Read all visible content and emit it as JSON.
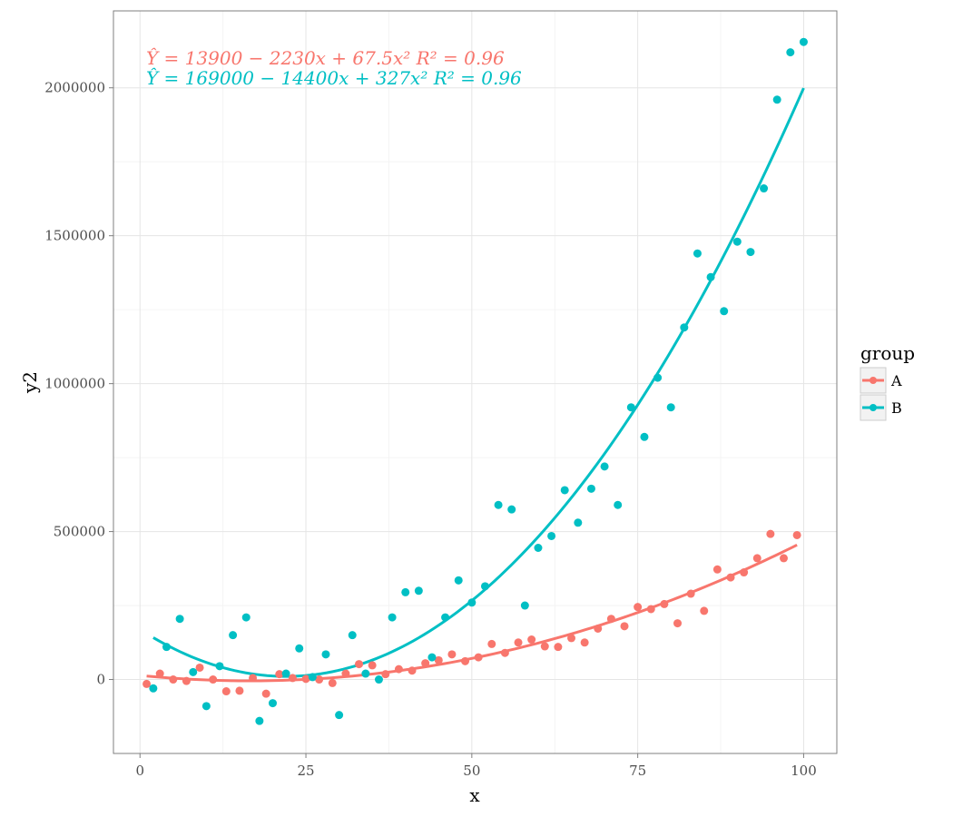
{
  "chart_data": {
    "type": "scatter",
    "title": "",
    "xlabel": "x",
    "ylabel": "y2",
    "xlim": [
      -4,
      105
    ],
    "ylim": [
      -250000,
      2260000
    ],
    "x_ticks": [
      0,
      25,
      50,
      75,
      100
    ],
    "x_tick_labels": [
      "0",
      "25",
      "50",
      "75",
      "100"
    ],
    "y_ticks": [
      0,
      500000,
      1000000,
      1500000,
      2000000
    ],
    "y_tick_labels": [
      "0",
      "500000",
      "1000000",
      "1500000",
      "2000000"
    ],
    "grid": true,
    "legend": {
      "title": "group",
      "position": "right",
      "entries": [
        "A",
        "B"
      ]
    },
    "annotations": [
      {
        "group": "A",
        "text": "Ŷ = 13900 − 2230x + 67.5x²    R² = 0.96"
      },
      {
        "group": "B",
        "text": "Ŷ = 169000 − 14400x + 327x²    R² = 0.96"
      }
    ],
    "series": [
      {
        "name": "A",
        "color": "#F8766D",
        "fit": {
          "a": 13900,
          "b": -2230,
          "c": 67.5,
          "x_range": [
            1,
            99
          ]
        },
        "points": [
          [
            1,
            -15000
          ],
          [
            3,
            20000
          ],
          [
            5,
            0
          ],
          [
            7,
            -5000
          ],
          [
            9,
            40000
          ],
          [
            11,
            0
          ],
          [
            13,
            -40000
          ],
          [
            15,
            -38000
          ],
          [
            17,
            5000
          ],
          [
            19,
            -48000
          ],
          [
            21,
            18000
          ],
          [
            23,
            5000
          ],
          [
            25,
            2000
          ],
          [
            27,
            0
          ],
          [
            29,
            -12000
          ],
          [
            31,
            20000
          ],
          [
            33,
            52000
          ],
          [
            35,
            48000
          ],
          [
            37,
            18000
          ],
          [
            39,
            35000
          ],
          [
            41,
            30000
          ],
          [
            43,
            55000
          ],
          [
            45,
            65000
          ],
          [
            47,
            85000
          ],
          [
            49,
            62000
          ],
          [
            51,
            75000
          ],
          [
            53,
            120000
          ],
          [
            55,
            90000
          ],
          [
            57,
            125000
          ],
          [
            59,
            135000
          ],
          [
            61,
            112000
          ],
          [
            63,
            110000
          ],
          [
            65,
            140000
          ],
          [
            67,
            125000
          ],
          [
            69,
            172000
          ],
          [
            71,
            205000
          ],
          [
            73,
            180000
          ],
          [
            75,
            245000
          ],
          [
            77,
            238000
          ],
          [
            79,
            255000
          ],
          [
            81,
            190000
          ],
          [
            83,
            290000
          ],
          [
            85,
            232000
          ],
          [
            87,
            372000
          ],
          [
            89,
            345000
          ],
          [
            91,
            362000
          ],
          [
            93,
            410000
          ],
          [
            95,
            492000
          ],
          [
            97,
            410000
          ],
          [
            99,
            488000
          ]
        ]
      },
      {
        "name": "B",
        "color": "#00BFC4",
        "fit": {
          "a": 169000,
          "b": -14400,
          "c": 327,
          "x_range": [
            2,
            100
          ]
        },
        "points": [
          [
            2,
            -30000
          ],
          [
            4,
            110000
          ],
          [
            6,
            205000
          ],
          [
            8,
            25000
          ],
          [
            10,
            -90000
          ],
          [
            12,
            45000
          ],
          [
            14,
            150000
          ],
          [
            16,
            210000
          ],
          [
            18,
            -140000
          ],
          [
            20,
            -80000
          ],
          [
            22,
            20000
          ],
          [
            24,
            105000
          ],
          [
            26,
            8000
          ],
          [
            28,
            85000
          ],
          [
            30,
            -120000
          ],
          [
            32,
            150000
          ],
          [
            34,
            20000
          ],
          [
            36,
            0
          ],
          [
            38,
            210000
          ],
          [
            40,
            295000
          ],
          [
            42,
            300000
          ],
          [
            44,
            75000
          ],
          [
            46,
            210000
          ],
          [
            48,
            335000
          ],
          [
            50,
            260000
          ],
          [
            52,
            315000
          ],
          [
            54,
            590000
          ],
          [
            56,
            575000
          ],
          [
            58,
            250000
          ],
          [
            60,
            445000
          ],
          [
            62,
            485000
          ],
          [
            64,
            640000
          ],
          [
            66,
            530000
          ],
          [
            68,
            645000
          ],
          [
            70,
            720000
          ],
          [
            72,
            590000
          ],
          [
            74,
            920000
          ],
          [
            76,
            820000
          ],
          [
            78,
            1020000
          ],
          [
            80,
            920000
          ],
          [
            82,
            1190000
          ],
          [
            84,
            1440000
          ],
          [
            86,
            1360000
          ],
          [
            88,
            1245000
          ],
          [
            90,
            1480000
          ],
          [
            92,
            1445000
          ],
          [
            94,
            1660000
          ],
          [
            96,
            1960000
          ],
          [
            98,
            2120000
          ],
          [
            100,
            2155000
          ]
        ]
      }
    ]
  }
}
